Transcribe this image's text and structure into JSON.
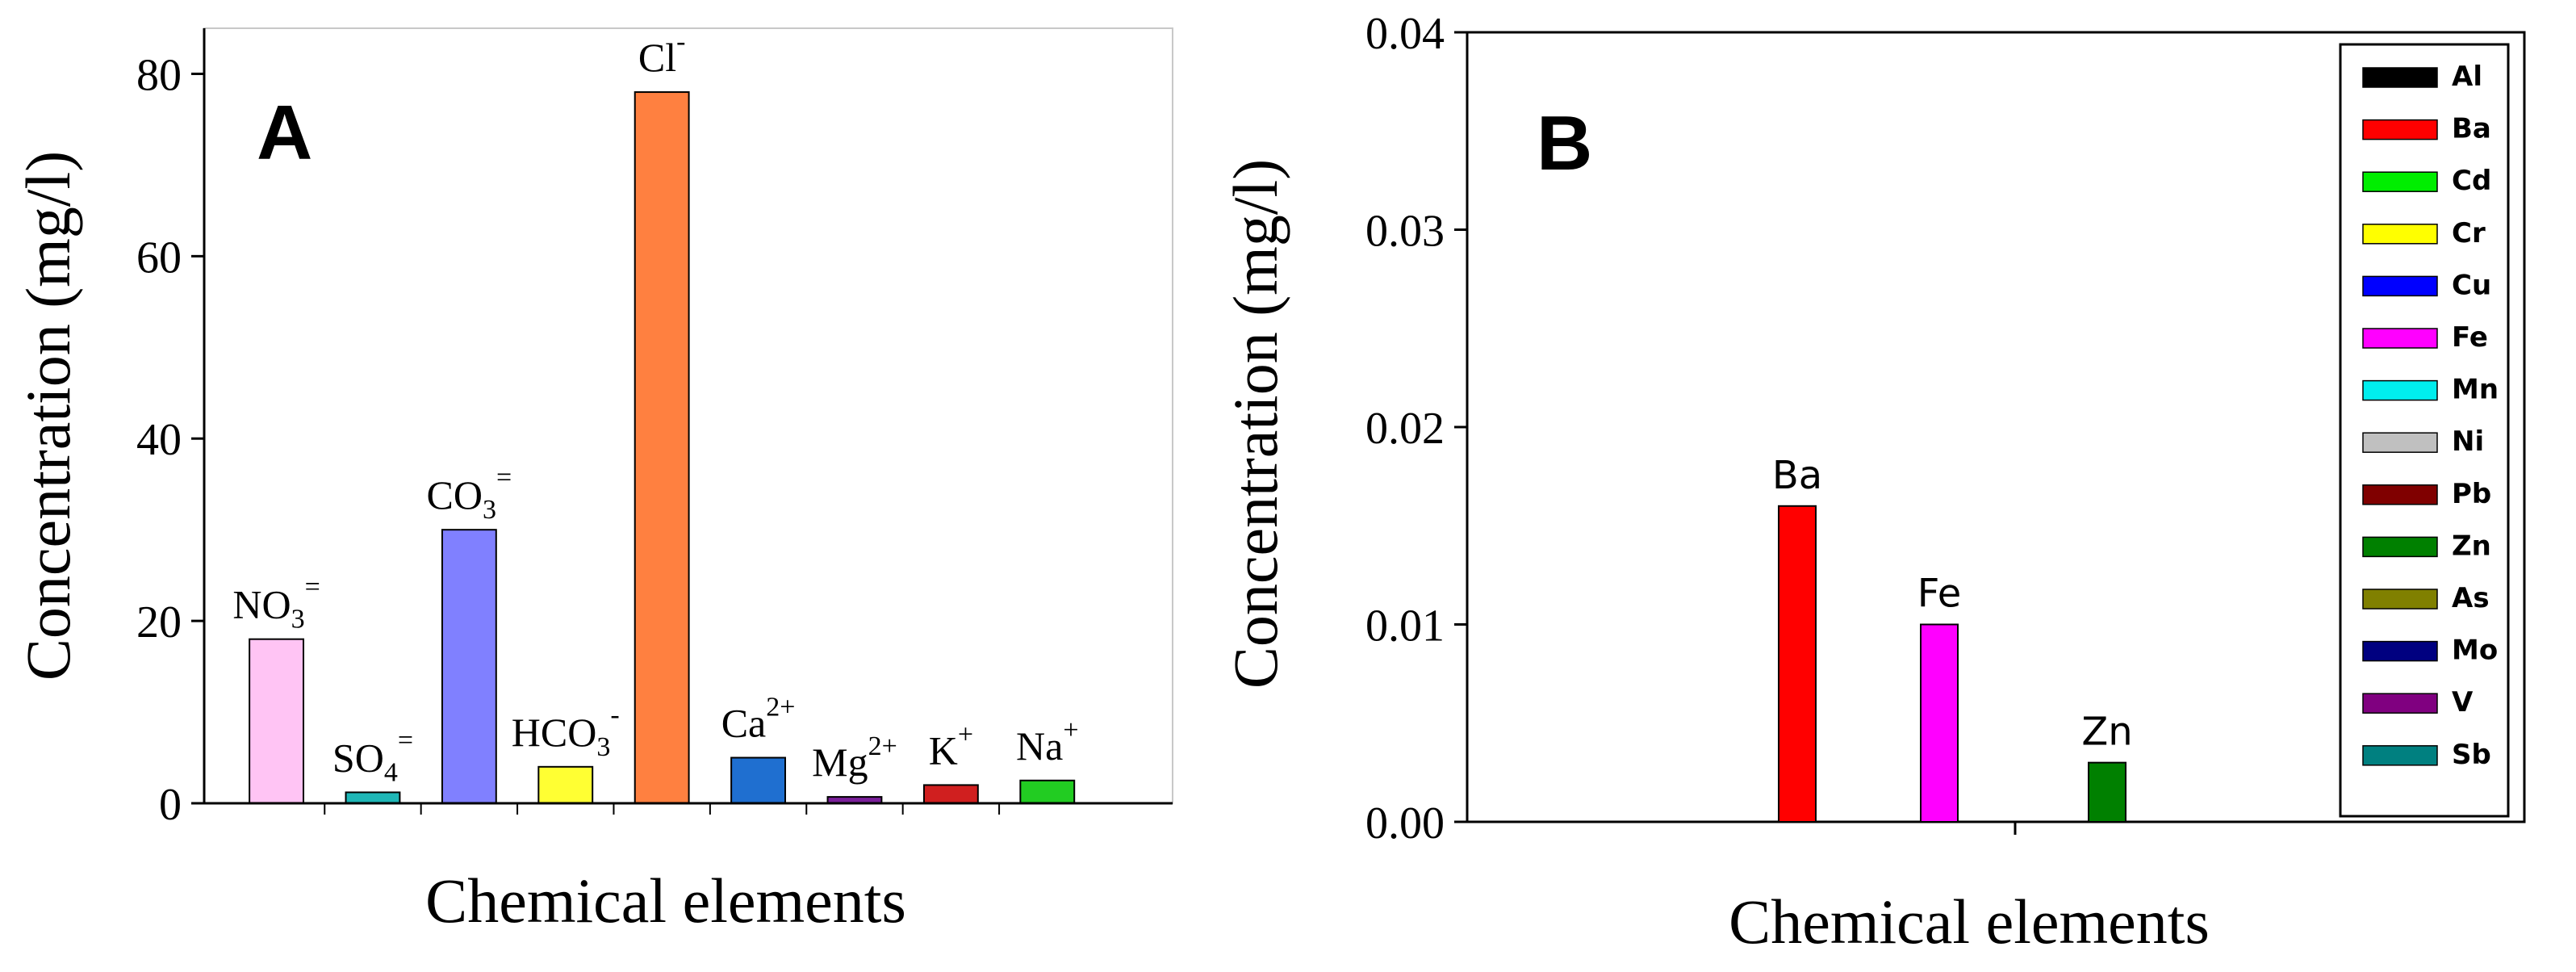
{
  "chart_data": [
    {
      "id": "A",
      "type": "bar",
      "panel_label": "A",
      "title": "",
      "xlabel": "Chemical elements",
      "ylabel": "Concentration (mg/l)",
      "ylim": [
        0,
        85
      ],
      "yticks": [
        0,
        20,
        40,
        60,
        80
      ],
      "ytick_labels": [
        "0",
        "20",
        "40",
        "60",
        "80"
      ],
      "categories": [
        {
          "base": "NO",
          "sub": "3",
          "sup": "=",
          "value": 18,
          "color": "#FFC4F4"
        },
        {
          "base": "SO",
          "sub": "4",
          "sup": "=",
          "value": 1.2,
          "color": "#1FB7B7"
        },
        {
          "base": "CO",
          "sub": "3",
          "sup": "=",
          "value": 30,
          "color": "#8080FF"
        },
        {
          "base": "HCO",
          "sub": "3",
          "sup": "-",
          "value": 4,
          "color": "#FFFF33"
        },
        {
          "base": "Cl",
          "sub": "",
          "sup": "-",
          "value": 78,
          "color": "#FF8040"
        },
        {
          "base": "Ca",
          "sub": "",
          "sup": "2+",
          "value": 5,
          "color": "#1F6FD0"
        },
        {
          "base": "Mg",
          "sub": "",
          "sup": "2+",
          "value": 0.7,
          "color": "#7A1F9A"
        },
        {
          "base": "K",
          "sub": "",
          "sup": "+",
          "value": 2,
          "color": "#D01F1F"
        },
        {
          "base": "Na",
          "sub": "",
          "sup": "+",
          "value": 2.5,
          "color": "#22CC22"
        }
      ]
    },
    {
      "id": "B",
      "type": "bar",
      "panel_label": "B",
      "title": "",
      "xlabel": "Chemical elements",
      "ylabel": "Concentration (mg/l)",
      "ylim": [
        0,
        0.04
      ],
      "yticks": [
        0,
        0.01,
        0.02,
        0.03,
        0.04
      ],
      "ytick_labels": [
        "0.00",
        "0.01",
        "0.02",
        "0.03",
        "0.04"
      ],
      "series": [
        {
          "name": "Al",
          "color": "#000000",
          "value": 0
        },
        {
          "name": "Ba",
          "color": "#FF0000",
          "value": 0.016
        },
        {
          "name": "Cd",
          "color": "#00EE00",
          "value": 0
        },
        {
          "name": "Cr",
          "color": "#FFFF00",
          "value": 0
        },
        {
          "name": "Cu",
          "color": "#0000FF",
          "value": 0
        },
        {
          "name": "Fe",
          "color": "#FF00FF",
          "value": 0.01
        },
        {
          "name": "Mn",
          "color": "#00EEEE",
          "value": 0
        },
        {
          "name": "Ni",
          "color": "#C0C0C0",
          "value": 0
        },
        {
          "name": "Pb",
          "color": "#800000",
          "value": 0
        },
        {
          "name": "Zn",
          "color": "#008000",
          "value": 0.003
        },
        {
          "name": "As",
          "color": "#808000",
          "value": 0
        },
        {
          "name": "Mo",
          "color": "#000080",
          "value": 0
        },
        {
          "name": "V",
          "color": "#800080",
          "value": 0
        },
        {
          "name": "Sb",
          "color": "#008080",
          "value": 0
        }
      ],
      "bar_labels": [
        "Ba",
        "Fe",
        "Zn"
      ],
      "legend_position": "right"
    }
  ]
}
